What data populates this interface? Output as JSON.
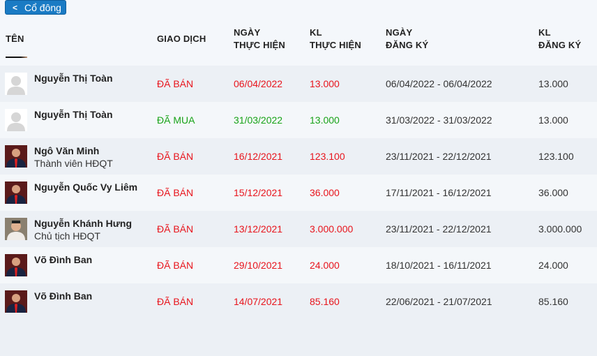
{
  "back_button": {
    "label": "Cổ đông",
    "icon": "chevron-left-icon"
  },
  "headers": {
    "name": "TÊN",
    "trade": "GIAO DỊCH",
    "exec_date": [
      "NGÀY",
      "THỰC HIỆN"
    ],
    "exec_volume": [
      "KL",
      "THỰC HIỆN"
    ],
    "reg_date": [
      "NGÀY",
      "ĐĂNG KÝ"
    ],
    "reg_volume": [
      "KL",
      "ĐĂNG KÝ"
    ]
  },
  "colors": {
    "sell": "#e8141c",
    "buy": "#18a318",
    "button": "#1a7bc4"
  },
  "rows": [
    {
      "name": "Nguyễn Thị Toàn",
      "role": "",
      "avatar": "placeholder",
      "trade": "ĐÃ BÁN",
      "type": "sell",
      "exec_date": "06/04/2022",
      "exec_volume": "13.000",
      "reg_date": "06/04/2022 - 06/04/2022",
      "reg_volume": "13.000"
    },
    {
      "name": "Nguyễn Thị Toàn",
      "role": "",
      "avatar": "placeholder",
      "trade": "ĐÃ MUA",
      "type": "buy",
      "exec_date": "31/03/2022",
      "exec_volume": "13.000",
      "reg_date": "31/03/2022 - 31/03/2022",
      "reg_volume": "13.000"
    },
    {
      "name": "Ngô Văn Minh",
      "role": "Thành viên HĐQT",
      "avatar": "photo",
      "trade": "ĐÃ BÁN",
      "type": "sell",
      "exec_date": "16/12/2021",
      "exec_volume": "123.100",
      "reg_date": "23/11/2021 - 22/12/2021",
      "reg_volume": "123.100"
    },
    {
      "name": "Nguyễn Quốc Vy Liêm",
      "role": "",
      "avatar": "photo",
      "trade": "ĐÃ BÁN",
      "type": "sell",
      "exec_date": "15/12/2021",
      "exec_volume": "36.000",
      "reg_date": "17/11/2021 - 16/12/2021",
      "reg_volume": "36.000"
    },
    {
      "name": "Nguyễn Khánh Hưng",
      "role": "Chủ tịch HĐQT",
      "avatar": "photo-light",
      "trade": "ĐÃ BÁN",
      "type": "sell",
      "exec_date": "13/12/2021",
      "exec_volume": "3.000.000",
      "reg_date": "23/11/2021 - 22/12/2021",
      "reg_volume": "3.000.000"
    },
    {
      "name": "Võ Đình Ban",
      "role": "",
      "avatar": "photo",
      "trade": "ĐÃ BÁN",
      "type": "sell",
      "exec_date": "29/10/2021",
      "exec_volume": "24.000",
      "reg_date": "18/10/2021 - 16/11/2021",
      "reg_volume": "24.000"
    },
    {
      "name": "Võ Đình Ban",
      "role": "",
      "avatar": "photo",
      "trade": "ĐÃ BÁN",
      "type": "sell",
      "exec_date": "14/07/2021",
      "exec_volume": "85.160",
      "reg_date": "22/06/2021 - 21/07/2021",
      "reg_volume": "85.160"
    }
  ]
}
